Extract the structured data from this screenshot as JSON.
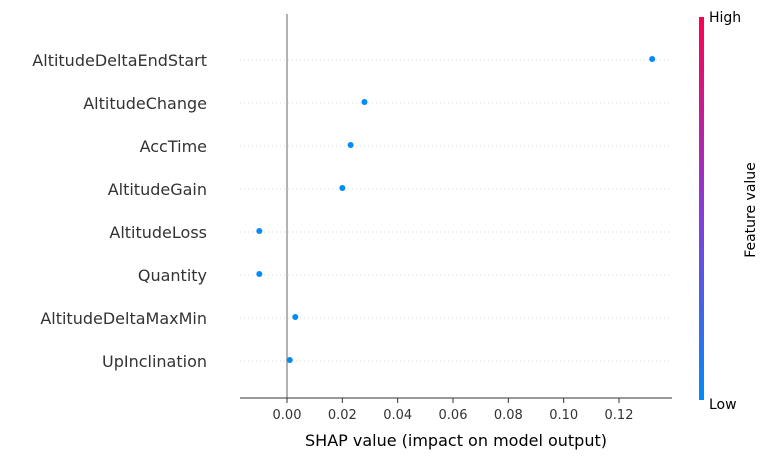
{
  "chart_data": {
    "type": "scatter",
    "title": "",
    "xlabel": "SHAP value (impact on model output)",
    "xlim": [
      -0.017,
      0.138
    ],
    "xticks": [
      0.0,
      0.02,
      0.04,
      0.06,
      0.08,
      0.1,
      0.12
    ],
    "xtick_labels": [
      "0.00",
      "0.02",
      "0.04",
      "0.06",
      "0.08",
      "0.10",
      "0.12"
    ],
    "features": [
      "AltitudeDeltaEndStart",
      "AltitudeChange",
      "AccTime",
      "AltitudeGain",
      "AltitudeLoss",
      "Quantity",
      "AltitudeDeltaMaxMin",
      "UpInclination"
    ],
    "shap_values": [
      0.132,
      0.028,
      0.023,
      0.02,
      -0.01,
      -0.01,
      0.003,
      0.001
    ],
    "point_color": "#008bfb",
    "zero_line_color": "#999999",
    "grid": "dotted horizontal per feature",
    "colorbar": {
      "label": "Feature value",
      "high_label": "High",
      "low_label": "Low",
      "high_color": "#ff0052",
      "mid_color": "#8a3ad8",
      "low_color": "#008bfb"
    }
  }
}
